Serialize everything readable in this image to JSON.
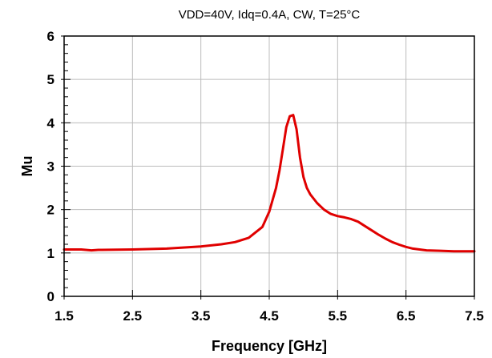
{
  "chart_data": {
    "type": "line",
    "title": "VDD=40V, Idq=0.4A, CW, T=25°C",
    "xlabel": "Frequency [GHz]",
    "ylabel": "Mu",
    "xlim": [
      1.5,
      7.5
    ],
    "ylim": [
      0,
      6
    ],
    "xticks": [
      "1.5",
      "2.5",
      "3.5",
      "4.5",
      "5.5",
      "6.5",
      "7.5"
    ],
    "yticks": [
      "0",
      "1",
      "2",
      "3",
      "4",
      "5",
      "6"
    ],
    "grid": true,
    "legend": "none",
    "series": [
      {
        "color": "#e00000",
        "x": [
          1.5,
          1.75,
          1.9,
          2.0,
          2.5,
          3.0,
          3.5,
          3.8,
          4.0,
          4.2,
          4.4,
          4.5,
          4.6,
          4.65,
          4.7,
          4.75,
          4.8,
          4.85,
          4.9,
          4.95,
          5.0,
          5.05,
          5.1,
          5.2,
          5.3,
          5.4,
          5.5,
          5.6,
          5.7,
          5.8,
          5.9,
          6.0,
          6.1,
          6.2,
          6.3,
          6.4,
          6.5,
          6.6,
          6.7,
          6.8,
          7.0,
          7.2,
          7.5
        ],
        "y": [
          1.08,
          1.08,
          1.06,
          1.07,
          1.08,
          1.1,
          1.15,
          1.2,
          1.25,
          1.35,
          1.6,
          1.95,
          2.5,
          2.9,
          3.4,
          3.9,
          4.15,
          4.18,
          3.85,
          3.2,
          2.75,
          2.5,
          2.35,
          2.15,
          2.0,
          1.9,
          1.85,
          1.82,
          1.78,
          1.72,
          1.62,
          1.52,
          1.42,
          1.33,
          1.25,
          1.19,
          1.14,
          1.1,
          1.08,
          1.06,
          1.05,
          1.04,
          1.04
        ]
      }
    ]
  }
}
